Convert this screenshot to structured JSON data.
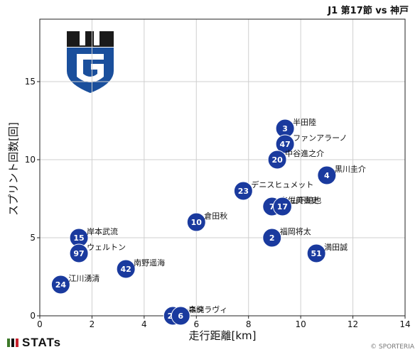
{
  "chart_title": "J1 第17節 vs 神戸",
  "brand": "STATs",
  "copyright": "© SPORTERIA",
  "colors": {
    "marker": "#1a3a9e",
    "marker_text": "#ffffff",
    "grid": "#cfcfcf",
    "axis": "#222222",
    "crest_blue": "#1a4f9c",
    "crest_black": "#1a1a1a",
    "brand_green": "#3d7a2a",
    "brand_red": "#c8202c"
  },
  "chart_data": {
    "type": "scatter",
    "xlabel": "走行距離[km]",
    "ylabel": "スプリント回数[回]",
    "xlim": [
      0,
      14
    ],
    "ylim": [
      0,
      19
    ],
    "xticks": [
      0,
      2,
      4,
      6,
      8,
      10,
      12,
      14
    ],
    "yticks": [
      0,
      5,
      10,
      15
    ],
    "grid": true,
    "points": [
      {
        "number": "3",
        "name": "半田陸",
        "x": 9.4,
        "y": 12
      },
      {
        "number": "47",
        "name": "ファンアラーノ",
        "x": 9.4,
        "y": 11
      },
      {
        "number": "20",
        "name": "中谷進之介",
        "x": 9.1,
        "y": 10
      },
      {
        "number": "4",
        "name": "黒川圭介",
        "x": 11.0,
        "y": 9
      },
      {
        "number": "23",
        "name": "デニスヒュメット",
        "x": 7.8,
        "y": 8
      },
      {
        "number": "7",
        "name": "宇佐美貴史",
        "x": 8.9,
        "y": 7
      },
      {
        "number": "17",
        "name": "山下諒也",
        "x": 9.3,
        "y": 7
      },
      {
        "number": "10",
        "name": "倉田秋",
        "x": 6.0,
        "y": 6
      },
      {
        "number": "2",
        "name": "福岡将太",
        "x": 8.9,
        "y": 5
      },
      {
        "number": "51",
        "name": "満田誠",
        "x": 10.6,
        "y": 4
      },
      {
        "number": "15",
        "name": "岸本武流",
        "x": 1.5,
        "y": 5
      },
      {
        "number": "97",
        "name": "ウェルトン",
        "x": 1.5,
        "y": 4
      },
      {
        "number": "42",
        "name": "南野遥海",
        "x": 3.3,
        "y": 3
      },
      {
        "number": "24",
        "name": "江川湧清",
        "x": 0.8,
        "y": 2
      },
      {
        "number": "22",
        "name": "一森純",
        "x": 5.1,
        "y": 0
      },
      {
        "number": "6",
        "name": "ネタラヴィ",
        "x": 5.4,
        "y": 0
      }
    ]
  }
}
